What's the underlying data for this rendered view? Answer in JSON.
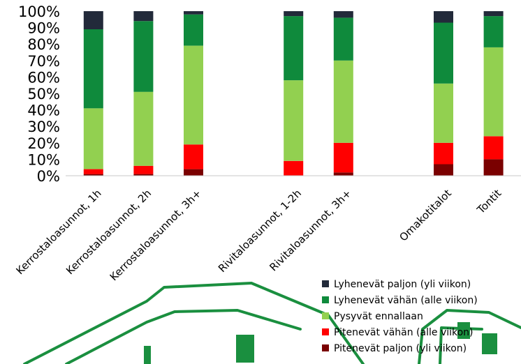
{
  "chart_data": {
    "type": "bar",
    "stacked": true,
    "categories": [
      "Kerrostaloasunnot, 1h",
      "Kerrostaloasunnot, 2h",
      "Kerrostaloasunnot, 3h+",
      "",
      "Rivitaloasunnot, 1-2h",
      "Rivitaloasunnot, 3h+",
      "",
      "Omakotitalot",
      "Tontit"
    ],
    "yticks": [
      "0%",
      "10%",
      "20%",
      "30%",
      "40%",
      "50%",
      "60%",
      "70%",
      "80%",
      "90%",
      "100%"
    ],
    "ylim": [
      0,
      100
    ],
    "legend_position": "bottom-right",
    "grid": false,
    "series": [
      {
        "name": "Pitenevät paljon (yli viikon)",
        "color": "#7a0000",
        "values": [
          1,
          1,
          4,
          null,
          0,
          2,
          null,
          7,
          10
        ]
      },
      {
        "name": "Pitenevät vähän (alle viikon)",
        "color": "#ff0000",
        "values": [
          3,
          5,
          15,
          null,
          9,
          18,
          null,
          13,
          14
        ]
      },
      {
        "name": "Pysyvät ennallaan",
        "color": "#92d050",
        "values": [
          37,
          45,
          60,
          null,
          49,
          50,
          null,
          36,
          54
        ]
      },
      {
        "name": "Lyhenevät vähän (alle viikon)",
        "color": "#0f8a3c",
        "values": [
          48,
          43,
          19,
          null,
          39,
          26,
          null,
          37,
          19
        ]
      },
      {
        "name": "Lyhenevät paljon (yli viikon)",
        "color": "#222a3a",
        "values": [
          11,
          6,
          2,
          null,
          3,
          4,
          null,
          7,
          3
        ]
      }
    ]
  }
}
